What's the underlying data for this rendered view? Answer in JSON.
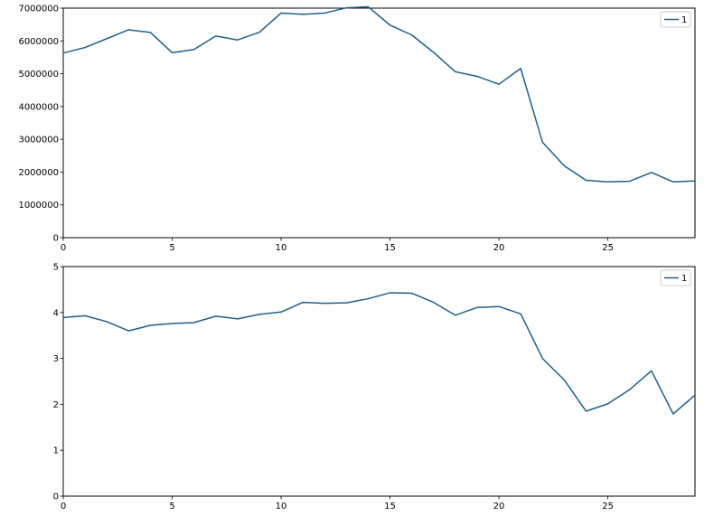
{
  "colors": {
    "series": "#1f5f8b",
    "frame": "#000000",
    "legend_border": "#cccccc",
    "background": "#ffffff"
  },
  "chart_data": [
    {
      "type": "line",
      "title": "",
      "xlabel": "",
      "ylabel": "",
      "xlim": [
        0,
        29
      ],
      "ylim": [
        0,
        7000000
      ],
      "xticks": [
        0,
        5,
        10,
        15,
        20,
        25
      ],
      "yticks": [
        0,
        1000000,
        2000000,
        3000000,
        4000000,
        5000000,
        6000000,
        7000000
      ],
      "grid": false,
      "legend": "top-right",
      "x": [
        0,
        1,
        2,
        3,
        4,
        5,
        6,
        7,
        8,
        9,
        10,
        11,
        12,
        13,
        14,
        15,
        16,
        17,
        18,
        19,
        20,
        21,
        22,
        23,
        24,
        25,
        26,
        27,
        28,
        29
      ],
      "series": [
        {
          "name": "1",
          "values": [
            5630000,
            5800000,
            6070000,
            6340000,
            6260000,
            5640000,
            5740000,
            6150000,
            6030000,
            6260000,
            6850000,
            6810000,
            6850000,
            7010000,
            7040000,
            6480000,
            6180000,
            5650000,
            5060000,
            4920000,
            4680000,
            5160000,
            2910000,
            2190000,
            1750000,
            1700000,
            1720000,
            1990000,
            1700000,
            1730000
          ]
        }
      ]
    },
    {
      "type": "line",
      "title": "",
      "xlabel": "",
      "ylabel": "",
      "xlim": [
        0,
        29
      ],
      "ylim": [
        0,
        5
      ],
      "xticks": [
        0,
        5,
        10,
        15,
        20,
        25
      ],
      "yticks": [
        0,
        1,
        2,
        3,
        4,
        5
      ],
      "grid": false,
      "legend": "top-right",
      "x": [
        0,
        1,
        2,
        3,
        4,
        5,
        6,
        7,
        8,
        9,
        10,
        11,
        12,
        13,
        14,
        15,
        16,
        17,
        18,
        19,
        20,
        21,
        22,
        23,
        24,
        25,
        26,
        27,
        28,
        29
      ],
      "series": [
        {
          "name": "1",
          "values": [
            3.89,
            3.93,
            3.8,
            3.6,
            3.72,
            3.76,
            3.78,
            3.92,
            3.86,
            3.96,
            4.01,
            4.22,
            4.2,
            4.21,
            4.3,
            4.43,
            4.42,
            4.22,
            3.94,
            4.11,
            4.13,
            3.97,
            3.0,
            2.53,
            1.85,
            2.01,
            2.32,
            2.73,
            1.79,
            2.2
          ]
        }
      ]
    }
  ]
}
